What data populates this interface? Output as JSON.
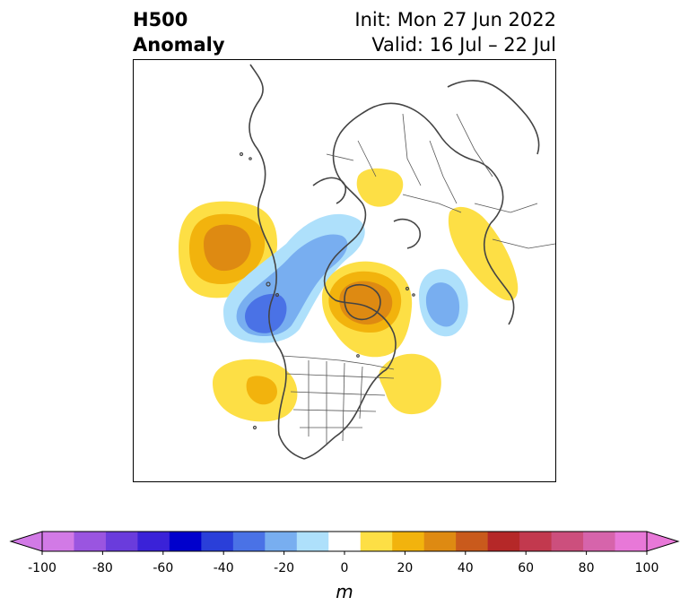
{
  "title": {
    "left_line1": "H500",
    "left_line2": "Anomaly",
    "right_line1": "Init: Mon 27 Jun 2022",
    "right_line2": "Valid: 16 Jul – 22 Jul"
  },
  "colorbar": {
    "unit": "m",
    "ticks": [
      "-100",
      "-80",
      "-60",
      "-40",
      "-20",
      "0",
      "20",
      "40",
      "60",
      "80",
      "100"
    ],
    "bins": [
      {
        "color": "#d27ae6"
      },
      {
        "color": "#9a55e0"
      },
      {
        "color": "#6a3cdc"
      },
      {
        "color": "#3a22d8"
      },
      {
        "color": "#0000cc"
      },
      {
        "color": "#2a3fd9"
      },
      {
        "color": "#4a72e6"
      },
      {
        "color": "#78aef0"
      },
      {
        "color": "#aee0fb"
      },
      {
        "color": "#ffffff"
      },
      {
        "color": "#fddf45"
      },
      {
        "color": "#f2b30d"
      },
      {
        "color": "#de8a12"
      },
      {
        "color": "#c95a1c"
      },
      {
        "color": "#b52828"
      },
      {
        "color": "#c2394e"
      },
      {
        "color": "#cc4f7d"
      },
      {
        "color": "#d664ab"
      },
      {
        "color": "#e878d8"
      }
    ],
    "extend_left_color": "#d27ae6",
    "extend_right_color": "#e878d8"
  },
  "map": {
    "anomaly_colors": {
      "pos_10": "#fddf45",
      "pos_20": "#f2b30d",
      "pos_30": "#de8a12",
      "neg_10": "#aee0fb",
      "neg_20": "#78aef0",
      "neg_30": "#4a72e6"
    }
  }
}
